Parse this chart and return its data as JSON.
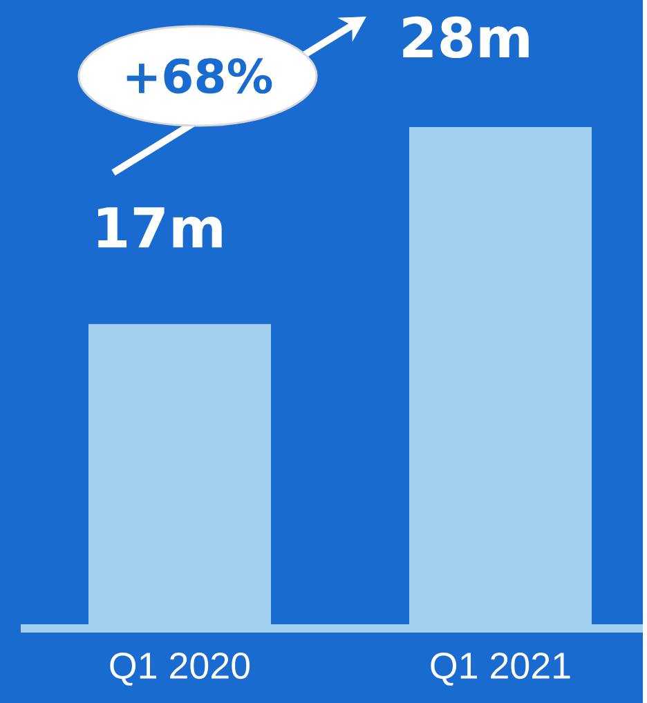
{
  "chart_data": {
    "type": "bar",
    "categories": [
      "Q1 2020",
      "Q1 2021"
    ],
    "values": [
      17,
      28
    ],
    "value_labels": [
      "17m",
      "28m"
    ],
    "color": "#a4d0f0",
    "annotations": [
      "+68%"
    ]
  }
}
